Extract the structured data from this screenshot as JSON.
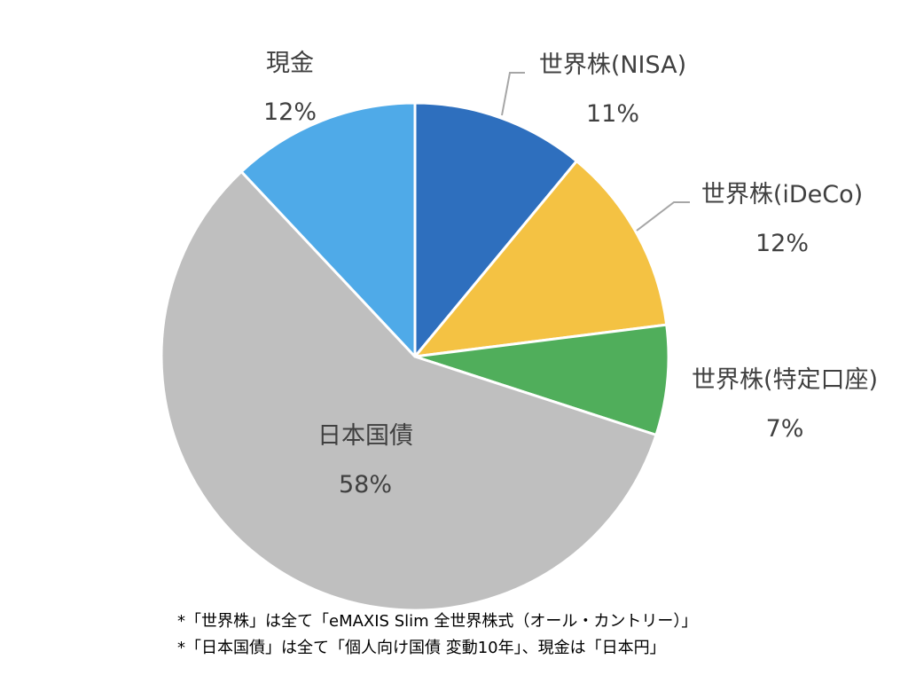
{
  "chart_data": {
    "type": "pie",
    "slices": [
      {
        "name": "世界株(NISA)",
        "label": "11%",
        "value": 11,
        "color": "#2E6FBE"
      },
      {
        "name": "世界株(iDeCo)",
        "label": "12%",
        "value": 12,
        "color": "#F4C243"
      },
      {
        "name": "世界株(特定口座)",
        "label": "7%",
        "value": 7,
        "color": "#50AE5B"
      },
      {
        "name": "日本国債",
        "label": "58%",
        "value": 58,
        "color": "#BFBFBF"
      },
      {
        "name": "現金",
        "label": "12%",
        "value": 12,
        "color": "#4FAAE8"
      }
    ]
  },
  "notes": [
    "*「世界株」は全て「eMAXIS Slim 全世界株式（オール・カントリー）」",
    "*「日本国債」は全て「個人向け国債 変動10年」、現金は「日本円」"
  ]
}
